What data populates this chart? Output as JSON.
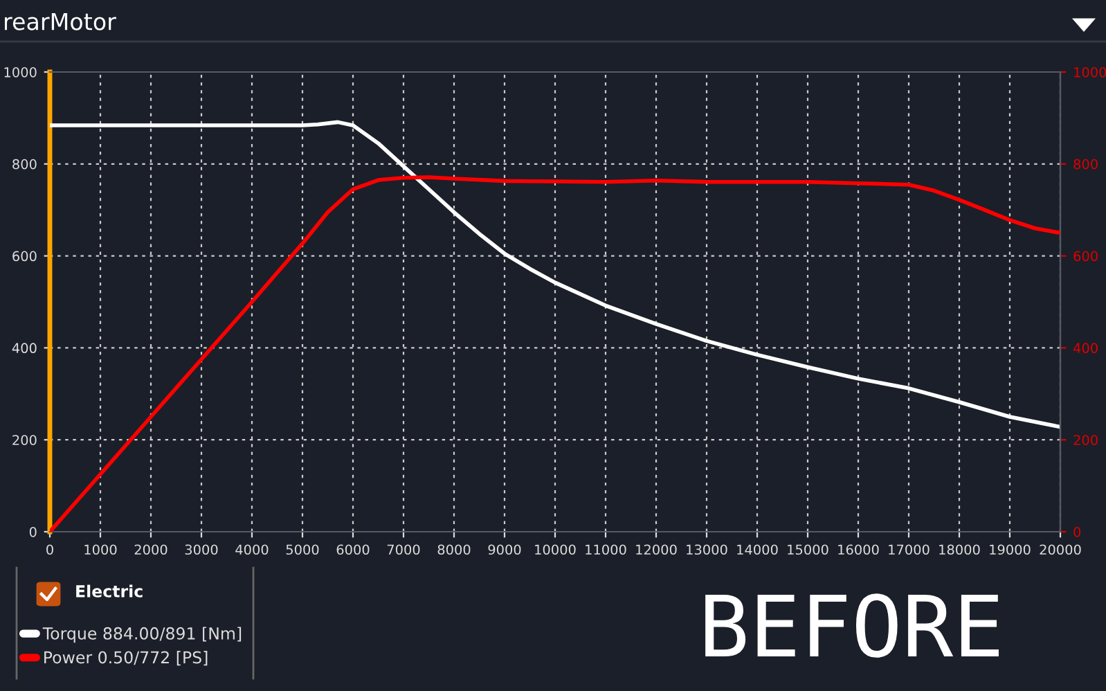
{
  "chart_data": {
    "type": "line",
    "title": "rearMotor",
    "legend_title": "Electric",
    "legend": "bottom left",
    "grid": true,
    "line_style": "solid",
    "marker": "none",
    "xlim": [
      0,
      20000
    ],
    "xticks": [
      0,
      1000,
      2000,
      3000,
      4000,
      5000,
      6000,
      7000,
      8000,
      9000,
      10000,
      11000,
      12000,
      13000,
      14000,
      15000,
      16000,
      17000,
      18000,
      19000,
      20000
    ],
    "ylim": [
      0,
      1000
    ],
    "yticks": [
      0,
      200,
      400,
      600,
      800,
      1000
    ],
    "y2lim": [
      0,
      1000
    ],
    "y2ticks": [
      0,
      200,
      400,
      600,
      800,
      1000
    ],
    "series": [
      {
        "name": "Torque 884.00/891 [Nm]",
        "color": "#ffffff",
        "x": [
          0,
          5000,
          5300,
          5700,
          6000,
          6500,
          7000,
          7500,
          8000,
          8500,
          9000,
          9500,
          10000,
          11000,
          12000,
          13000,
          14000,
          15000,
          16000,
          17000,
          18000,
          19000,
          20000
        ],
        "values": [
          884,
          884,
          886,
          891,
          884,
          845,
          795,
          745,
          695,
          648,
          605,
          572,
          542,
          492,
          452,
          415,
          385,
          358,
          333,
          312,
          282,
          250,
          228
        ]
      },
      {
        "name": "Power 0.50/772 [PS]",
        "color": "#ff0000",
        "axis": "y2",
        "x": [
          0,
          1000,
          2000,
          3000,
          4000,
          5000,
          5500,
          6000,
          6500,
          7000,
          7500,
          8000,
          9000,
          10000,
          11000,
          12000,
          13000,
          14000,
          15000,
          16000,
          17000,
          17500,
          18000,
          18500,
          19000,
          19500,
          20000
        ],
        "values": [
          0,
          125,
          250,
          375,
          500,
          627,
          695,
          745,
          765,
          770,
          771,
          768,
          763,
          762,
          761,
          764,
          761,
          761,
          761,
          758,
          755,
          742,
          722,
          700,
          678,
          660,
          650
        ]
      }
    ],
    "annotations": [
      "BEFORE"
    ]
  }
}
